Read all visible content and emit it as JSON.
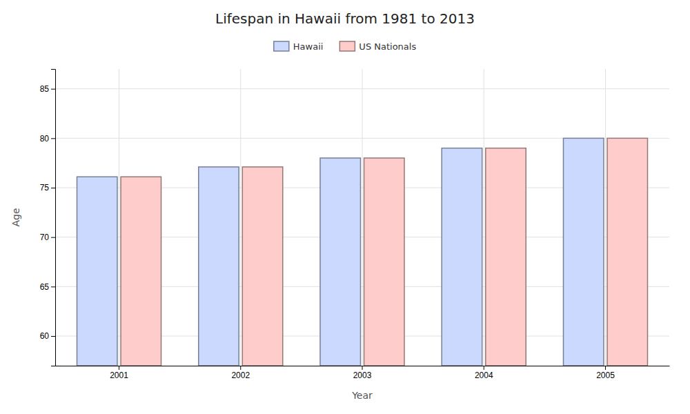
{
  "chart_data": {
    "type": "bar",
    "title": "Lifespan in Hawaii from 1981 to 2013",
    "xlabel": "Year",
    "ylabel": "Age",
    "categories": [
      "2001",
      "2002",
      "2003",
      "2004",
      "2005"
    ],
    "series": [
      {
        "name": "Hawaii",
        "color": "#ccd9ff",
        "values": [
          76.1,
          77.1,
          78.0,
          79.0,
          80.0
        ]
      },
      {
        "name": "US Nationals",
        "color": "#ffcccc",
        "values": [
          76.1,
          77.1,
          78.0,
          79.0,
          80.0
        ]
      }
    ],
    "ylim": [
      57,
      87
    ],
    "yticks": [
      60,
      65,
      70,
      75,
      80,
      85
    ],
    "grid": true,
    "legend": "top"
  }
}
